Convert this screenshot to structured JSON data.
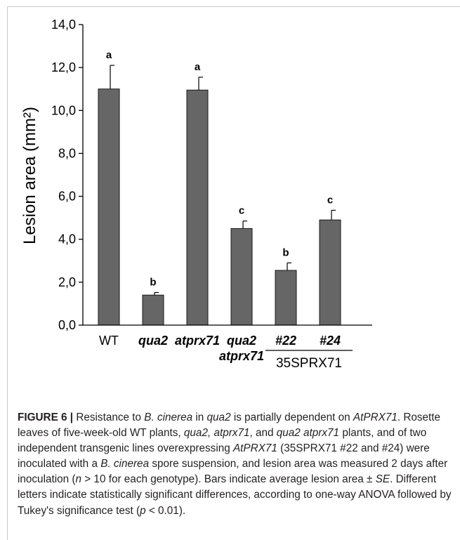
{
  "chart_data": {
    "type": "bar",
    "categories": [
      "WT",
      "qua2",
      "atprx71",
      "qua2 atprx71",
      "#22",
      "#24"
    ],
    "category_lines": [
      [
        "WT"
      ],
      [
        "qua2"
      ],
      [
        "atprx71"
      ],
      [
        "qua2",
        "atprx71"
      ],
      [
        "#22"
      ],
      [
        "#24"
      ]
    ],
    "category_italic": [
      false,
      true,
      true,
      true,
      true,
      true
    ],
    "group_label": "35SPRX71",
    "values": [
      11.0,
      1.4,
      10.95,
      4.5,
      2.55,
      4.9
    ],
    "errors": [
      1.1,
      0.12,
      0.6,
      0.35,
      0.35,
      0.45
    ],
    "letters": [
      "a",
      "b",
      "a",
      "c",
      "b",
      "c"
    ],
    "ylabel": "Lesion area (mm²)",
    "yticks": [
      "0,0",
      "2,0",
      "4,0",
      "6,0",
      "8,0",
      "10,0",
      "12,0",
      "14,0"
    ],
    "ylim": [
      0,
      14
    ],
    "bar_color": "#666666"
  },
  "caption": {
    "label": "FIGURE 6 | ",
    "segments": [
      [
        "Resistance to ",
        false
      ],
      [
        "B. cinerea",
        true
      ],
      [
        " in ",
        false
      ],
      [
        "qua2",
        true
      ],
      [
        " is partially dependent on ",
        false
      ],
      [
        "AtPRX71",
        true
      ],
      [
        ". Rosette leaves of five-week-old WT plants, ",
        false
      ],
      [
        "qua2, atprx71",
        true
      ],
      [
        ", and ",
        false
      ],
      [
        "qua2 atprx71",
        true
      ],
      [
        " plants, and of two independent transgenic lines overexpressing ",
        false
      ],
      [
        "AtPRX71",
        true
      ],
      [
        " (35SPRX71 #22 and #24) were inoculated with a ",
        false
      ],
      [
        "B. cinerea",
        true
      ],
      [
        " spore suspension, and lesion area was measured 2 days after inoculation (",
        false
      ],
      [
        "n",
        true
      ],
      [
        " > 10 for each genotype). Bars indicate average lesion area ± ",
        false
      ],
      [
        "SE",
        true
      ],
      [
        ". Different letters indicate statistically significant differences, according to one-way ANOVA followed by Tukey's significance test (",
        false
      ],
      [
        "p",
        true
      ],
      [
        " < 0.01).",
        false
      ]
    ]
  }
}
